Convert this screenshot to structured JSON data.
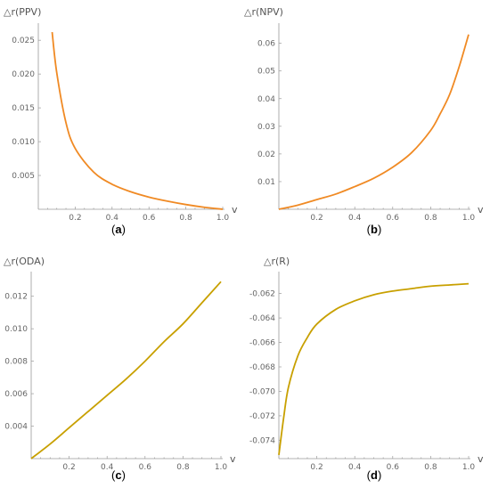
{
  "chart_data": [
    {
      "type": "line",
      "ylabel": "△r(PPV)",
      "xlabel": "v",
      "caption_label": "a",
      "xlim": [
        0,
        1.0
      ],
      "ylim": [
        0,
        0.027
      ],
      "xticks": [
        "0.2",
        "0.4",
        "0.6",
        "0.8",
        "1.0"
      ],
      "yticks": [
        "0.005",
        "0.010",
        "0.015",
        "0.020",
        "0.025"
      ],
      "color": "#f08a24",
      "series": [
        {
          "x": [
            0.075,
            0.1,
            0.15,
            0.2,
            0.3,
            0.4,
            0.5,
            0.6,
            0.7,
            0.8,
            0.9,
            1.0
          ],
          "values": [
            0.0262,
            0.0202,
            0.0128,
            0.009,
            0.0055,
            0.0037,
            0.0026,
            0.0018,
            0.0012,
            0.0007,
            0.0003,
            0.0
          ]
        }
      ]
    },
    {
      "type": "line",
      "ylabel": "△r(NPV)",
      "xlabel": "v",
      "caption_label": "b",
      "xlim": [
        0,
        1.0
      ],
      "ylim": [
        0,
        0.066
      ],
      "xticks": [
        "0.2",
        "0.4",
        "0.6",
        "0.8",
        "1.0"
      ],
      "yticks": [
        "0.01",
        "0.02",
        "0.03",
        "0.04",
        "0.05",
        "0.06"
      ],
      "color": "#f08a24",
      "series": [
        {
          "x": [
            0.0,
            0.1,
            0.2,
            0.3,
            0.4,
            0.5,
            0.6,
            0.7,
            0.8,
            0.85,
            0.9,
            0.95,
            1.0
          ],
          "values": [
            0.0,
            0.0015,
            0.0035,
            0.0055,
            0.0082,
            0.0112,
            0.0152,
            0.0205,
            0.0285,
            0.0345,
            0.0415,
            0.0515,
            0.0632
          ]
        }
      ]
    },
    {
      "type": "line",
      "ylabel": "△r(ODA)",
      "xlabel": "v",
      "caption_label": "c",
      "xlim": [
        0,
        1.0
      ],
      "ylim": [
        0.002,
        0.0133
      ],
      "xticks": [
        "0.2",
        "0.4",
        "0.6",
        "0.8",
        "1.0"
      ],
      "yticks": [
        "0.004",
        "0.006",
        "0.008",
        "0.010",
        "0.012"
      ],
      "color": "#c8a000",
      "series": [
        {
          "x": [
            0.0,
            0.1,
            0.2,
            0.3,
            0.4,
            0.5,
            0.6,
            0.7,
            0.8,
            0.9,
            1.0
          ],
          "values": [
            0.002,
            0.0029,
            0.0039,
            0.0049,
            0.0059,
            0.0069,
            0.008,
            0.0092,
            0.0103,
            0.0116,
            0.0129
          ]
        }
      ]
    },
    {
      "type": "line",
      "ylabel": "△r(R)",
      "xlabel": "v",
      "caption_label": "d",
      "xlim": [
        0,
        1.0
      ],
      "ylim": [
        -0.0755,
        -0.0605
      ],
      "xticks": [
        "0.2",
        "0.4",
        "0.6",
        "0.8",
        "1.0"
      ],
      "yticks": [
        "-0.074",
        "-0.072",
        "-0.070",
        "-0.068",
        "-0.066",
        "-0.064",
        "-0.062"
      ],
      "color": "#c8a000",
      "series": [
        {
          "x": [
            0.0,
            0.025,
            0.05,
            0.1,
            0.15,
            0.2,
            0.3,
            0.4,
            0.5,
            0.6,
            0.7,
            0.8,
            0.9,
            1.0
          ],
          "values": [
            -0.0752,
            -0.0722,
            -0.0697,
            -0.0671,
            -0.0656,
            -0.0645,
            -0.0633,
            -0.0626,
            -0.0621,
            -0.0618,
            -0.0616,
            -0.0614,
            -0.0613,
            -0.0612
          ]
        }
      ]
    }
  ]
}
